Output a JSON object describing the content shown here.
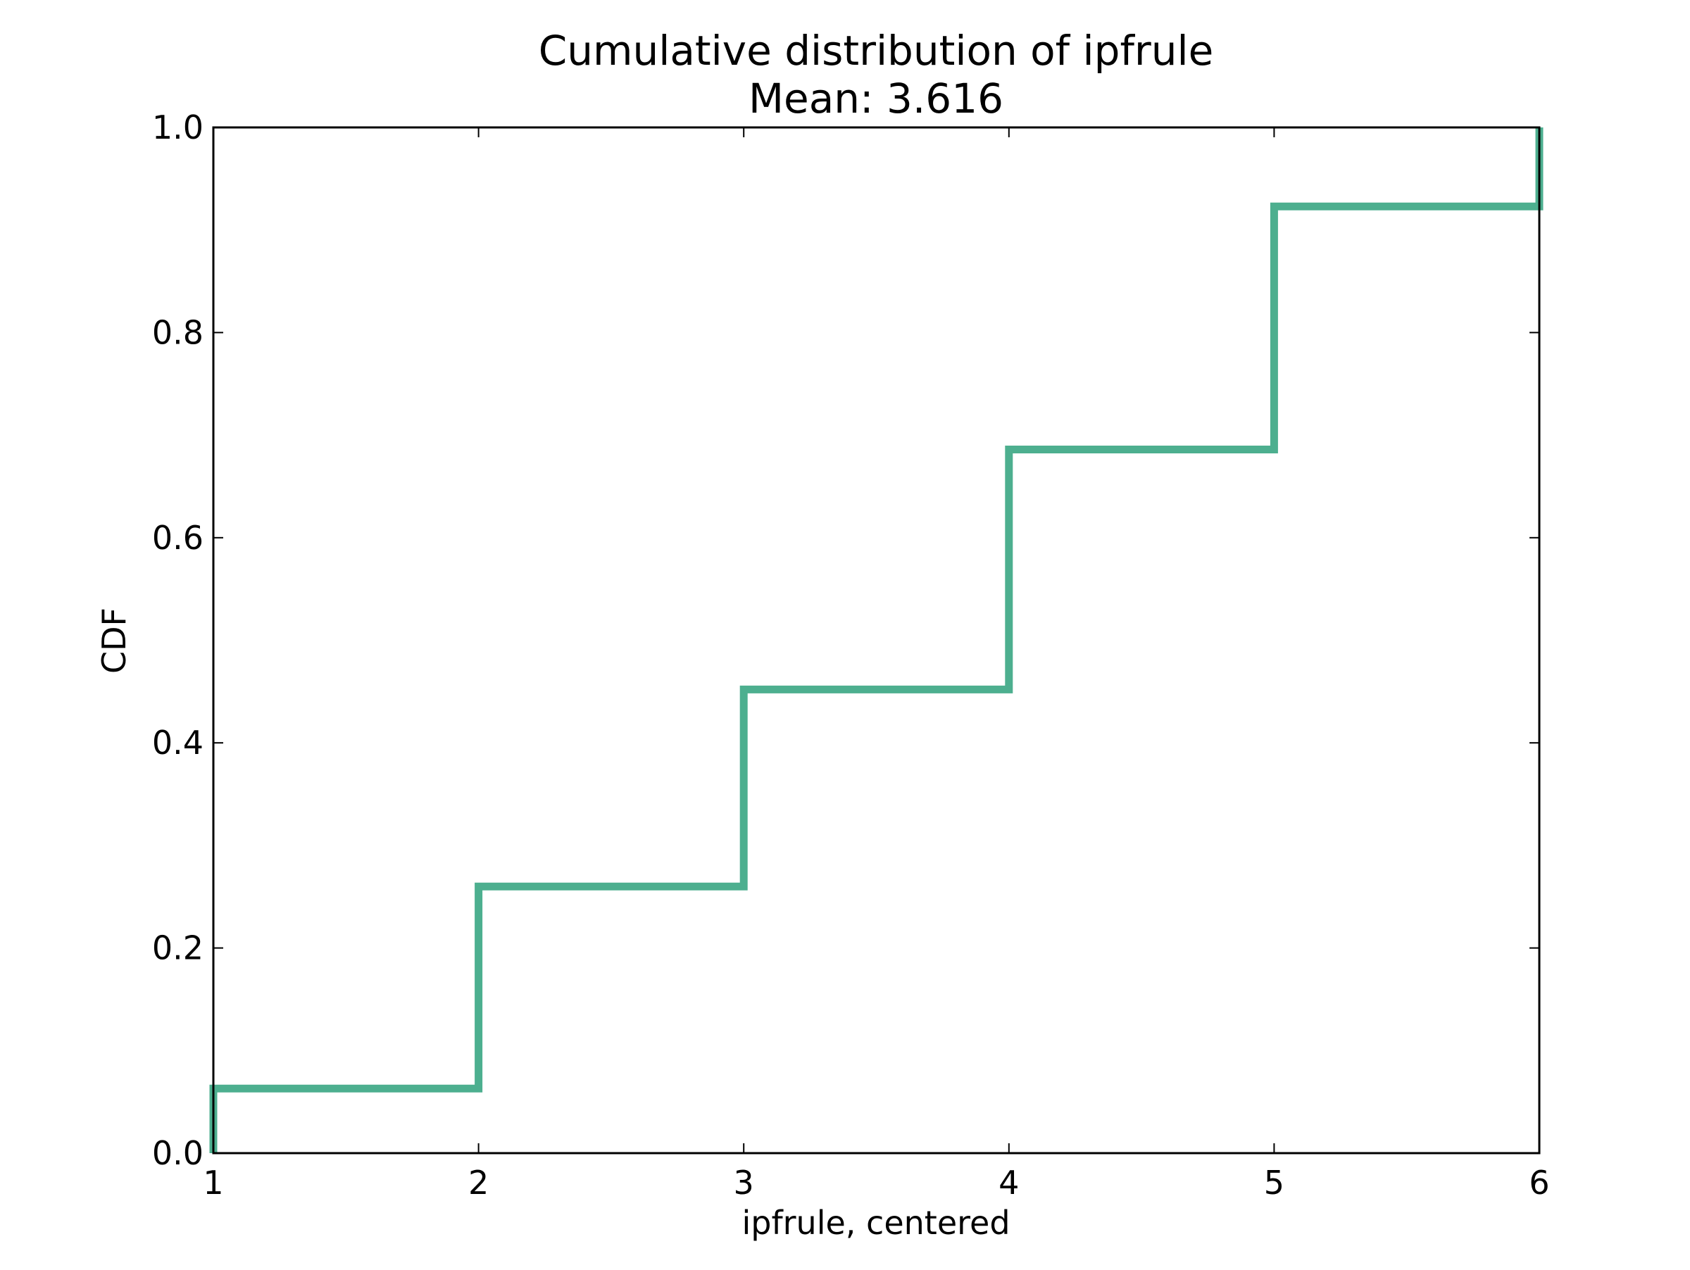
{
  "chart_data": {
    "type": "line",
    "step": "post",
    "title": "Cumulative distribution of ipfrule",
    "subtitle": "Mean: 3.616",
    "xlabel": "ipfrule, centered",
    "ylabel": "CDF",
    "xlim": [
      1,
      6
    ],
    "ylim": [
      0.0,
      1.0
    ],
    "xticks": [
      1,
      2,
      3,
      4,
      5,
      6
    ],
    "xtick_labels": [
      "1",
      "2",
      "3",
      "4",
      "5",
      "6"
    ],
    "yticks": [
      0.0,
      0.2,
      0.4,
      0.6,
      0.8,
      1.0
    ],
    "ytick_labels": [
      "0.0",
      "0.2",
      "0.4",
      "0.6",
      "0.8",
      "1.0"
    ],
    "grid": false,
    "legend": "none",
    "series": [
      {
        "color": "#4daf8f",
        "x": [
          1,
          1,
          2,
          2,
          3,
          3,
          4,
          4,
          5,
          5,
          6,
          6
        ],
        "y": [
          0.0,
          0.063,
          0.063,
          0.26,
          0.26,
          0.452,
          0.452,
          0.686,
          0.686,
          0.923,
          0.923,
          1.0
        ]
      }
    ]
  }
}
